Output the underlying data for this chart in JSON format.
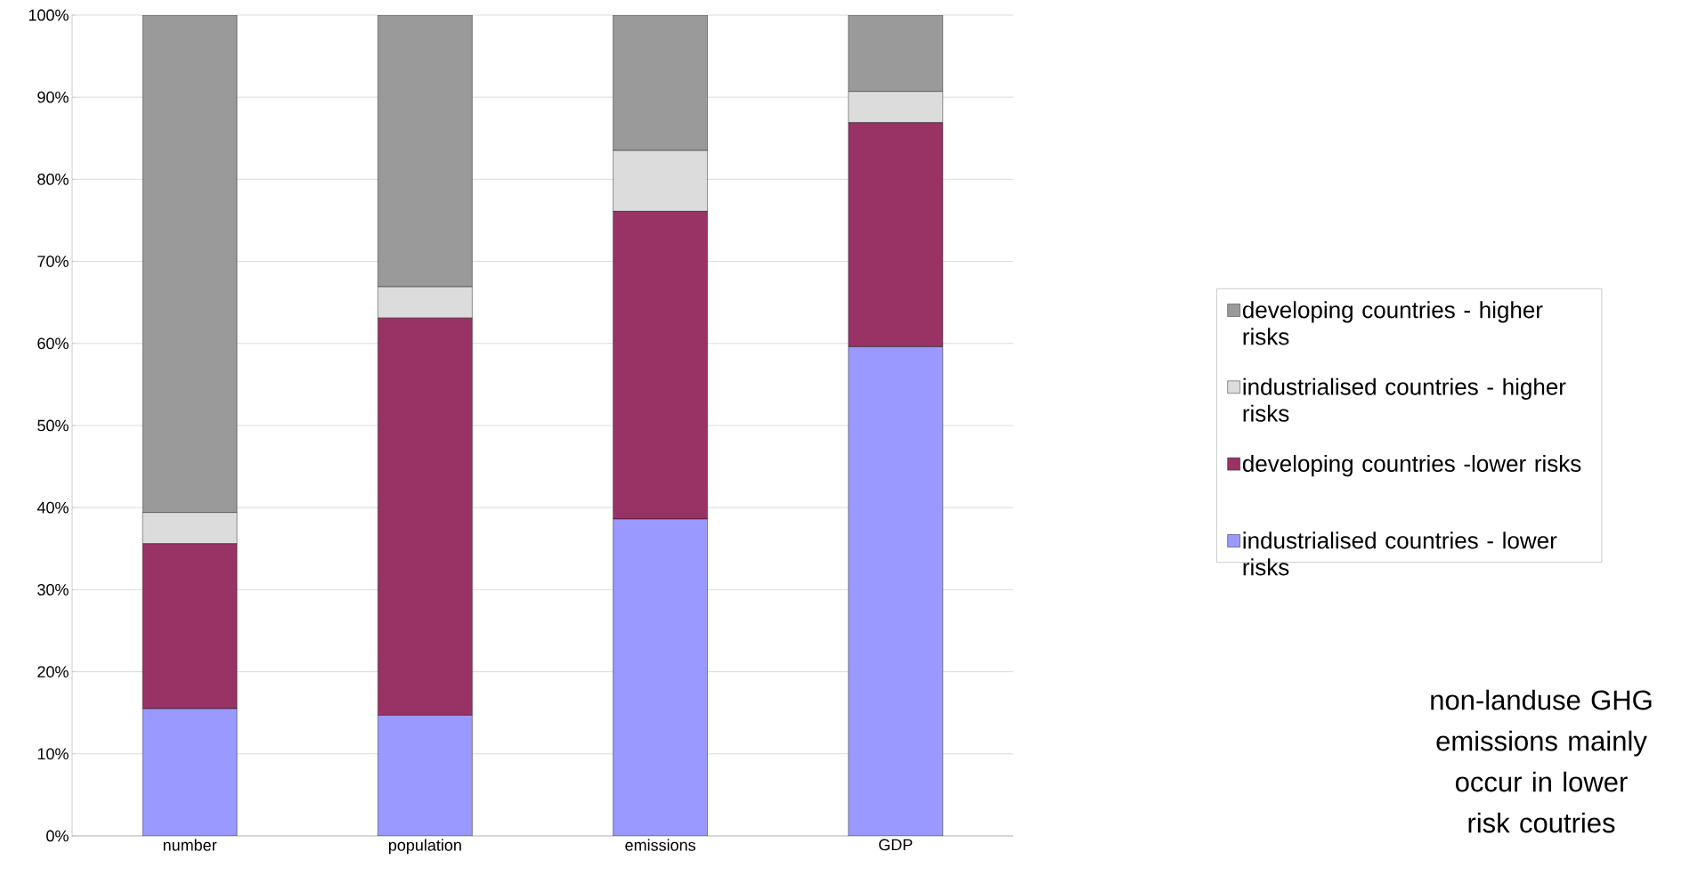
{
  "chart_data": {
    "type": "bar",
    "stacked": true,
    "categories": [
      "number",
      "population",
      "emissions",
      "GDP"
    ],
    "series": [
      {
        "name": "industrialised countries - lower risks",
        "color": "#9999ff",
        "values": [
          15.5,
          14.7,
          38.6,
          59.6
        ]
      },
      {
        "name": "developing countries -lower risks",
        "color": "#993366",
        "values": [
          20.1,
          48.4,
          37.5,
          27.3
        ]
      },
      {
        "name": "industrialised countries - higher risks",
        "color": "#dcdcdc",
        "values": [
          3.8,
          3.8,
          7.4,
          3.8
        ]
      },
      {
        "name": "developing countries - higher risks",
        "color": "#9a9a9a",
        "values": [
          60.6,
          33.1,
          16.5,
          9.3
        ]
      }
    ],
    "ylim": [
      0,
      100
    ],
    "yticks": [
      {
        "value": 0,
        "label": "0%"
      },
      {
        "value": 10,
        "label": "10%"
      },
      {
        "value": 20,
        "label": "20%"
      },
      {
        "value": 30,
        "label": "30%"
      },
      {
        "value": 40,
        "label": "40%"
      },
      {
        "value": 50,
        "label": "50%"
      },
      {
        "value": 60,
        "label": "60%"
      },
      {
        "value": 70,
        "label": "70%"
      },
      {
        "value": 80,
        "label": "80%"
      },
      {
        "value": 90,
        "label": "90%"
      },
      {
        "value": 100,
        "label": "100%"
      }
    ],
    "grid": "y",
    "legend": "right",
    "annotations": [
      "non-landuse GHG emissions mainly occur in lower risk coutries"
    ]
  }
}
